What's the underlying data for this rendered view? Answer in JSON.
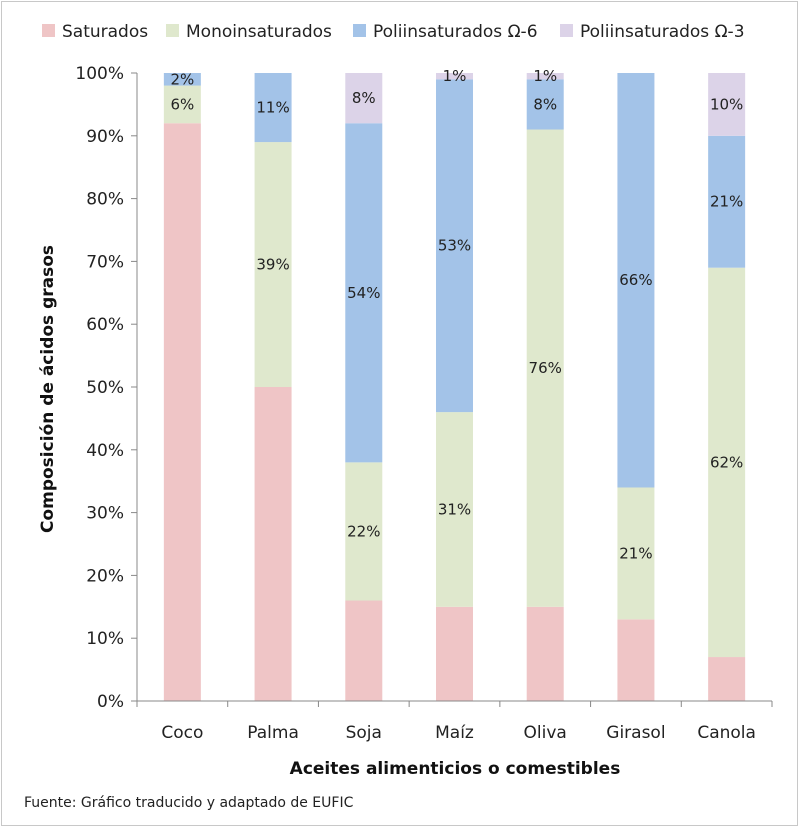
{
  "chart_data": {
    "type": "bar",
    "stacked": true,
    "categories": [
      "Coco",
      "Palma",
      "Soja",
      "Maíz",
      "Oliva",
      "Girasol",
      "Canola"
    ],
    "series": [
      {
        "name": "Saturados",
        "color": "#efc5c6",
        "values": [
          92,
          50,
          16,
          15,
          15,
          13,
          7
        ],
        "labels": [
          "",
          "",
          "",
          "",
          "",
          "",
          ""
        ]
      },
      {
        "name": "Monoinsaturados",
        "color": "#dfe8cd",
        "values": [
          6,
          39,
          22,
          31,
          76,
          21,
          62
        ],
        "labels": [
          "6%",
          "39%",
          "22%",
          "31%",
          "76%",
          "21%",
          "62%"
        ]
      },
      {
        "name": "Poliinsaturados Ω-6",
        "color": "#a3c3e8",
        "values": [
          2,
          11,
          54,
          53,
          8,
          66,
          21
        ],
        "labels": [
          "2%",
          "11%",
          "54%",
          "53%",
          "8%",
          "66%",
          "21%"
        ]
      },
      {
        "name": "Poliinsaturados Ω-3",
        "color": "#dcd3e8",
        "values": [
          0,
          0,
          8,
          1,
          1,
          0,
          10
        ],
        "labels": [
          "",
          "",
          "8%",
          "1%",
          "1%",
          "",
          "10%"
        ]
      }
    ],
    "ylim": [
      0,
      100
    ],
    "yticks": [
      "0%",
      "10%",
      "20%",
      "30%",
      "40%",
      "50%",
      "60%",
      "70%",
      "80%",
      "90%",
      "100%"
    ],
    "xlabel": "Aceites alimenticios o comestibles",
    "ylabel": "Composición de ácidos grasos",
    "legend_position": "top",
    "grid": false
  },
  "footer": {
    "source": "Fuente: Gráfico traducido y adaptado de EUFIC"
  }
}
